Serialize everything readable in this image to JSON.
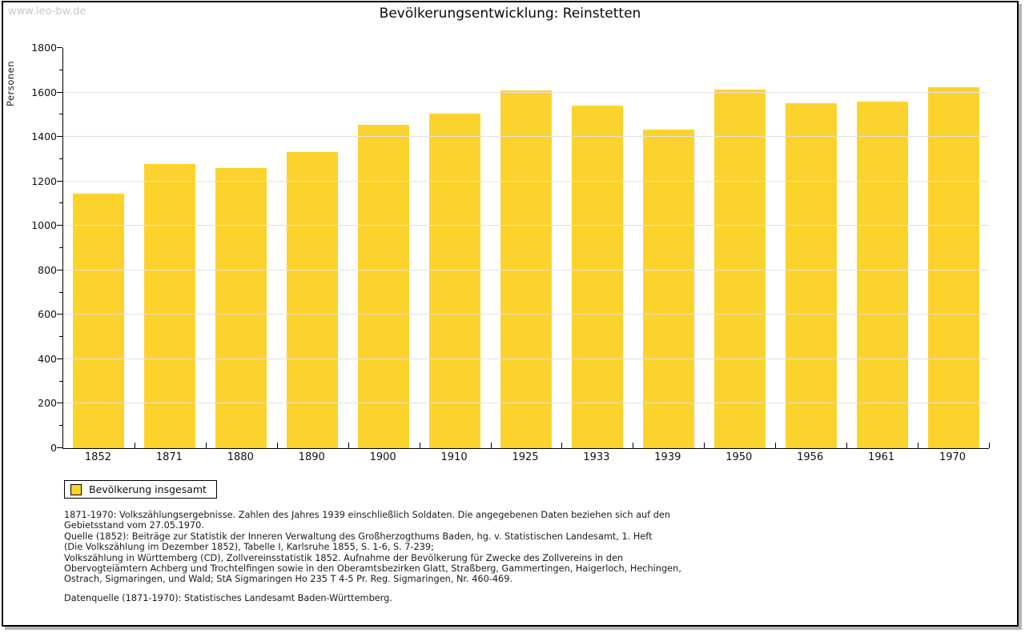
{
  "watermark": "www.leo-bw.de",
  "chart_data": {
    "type": "bar",
    "title": "Bevölkerungsentwicklung: Reinstetten",
    "ylabel": "Personen",
    "xlabel": "",
    "categories": [
      "1852",
      "1871",
      "1880",
      "1890",
      "1900",
      "1910",
      "1925",
      "1933",
      "1939",
      "1950",
      "1956",
      "1961",
      "1970"
    ],
    "values": [
      1145,
      1278,
      1261,
      1332,
      1455,
      1504,
      1610,
      1542,
      1434,
      1614,
      1550,
      1560,
      1624
    ],
    "series_name": "Bevölkerung insgesamt",
    "ylim": [
      0,
      1800
    ],
    "y_major_step": 200,
    "y_minor_step": 100,
    "grid": "horizontal",
    "bar_color": "#fcd32c",
    "legend_position": "bottom-left"
  },
  "legend": {
    "label": "Bevölkerung insgesamt",
    "swatch_color": "#fcd32c"
  },
  "notes_lines": [
    "1871-1970: Volkszählungsergebnisse. Zahlen des Jahres 1939 einschließlich Soldaten. Die angegebenen Daten beziehen sich auf den",
    "Gebietsstand vom 27.05.1970.",
    "Quelle (1852): Beiträge zur Statistik der Inneren Verwaltung des Großherzogthums Baden, hg. v. Statistischen Landesamt, 1. Heft",
    "(Die Volkszählung im Dezember 1852), Tabelle I, Karlsruhe 1855, S. 1-6, S. 7-239;",
    "Volkszählung in Württemberg (CD), Zollvereinsstatistik 1852. Aufnahme der Bevölkerung für Zwecke des Zollvereins in den",
    "Obervogteiämtern Achberg und Trochtelfingen sowie in den Oberamtsbezirken Glatt, Straßberg, Gammertingen, Haigerloch, Hechingen,",
    "Ostrach, Sigmaringen, und Wald; StA Sigmaringen Ho 235 T 4-5 Pr. Reg. Sigmaringen, Nr. 460-469."
  ],
  "datasource": "Datenquelle (1871-1970): Statistisches Landesamt Baden-Württemberg.",
  "colors": {
    "bar": "#fcd32c",
    "gridline": "#e2e2e2",
    "watermark": "#c9c9c9",
    "frame_border": "#000000",
    "frame_shadow": "#b4b4b4"
  }
}
